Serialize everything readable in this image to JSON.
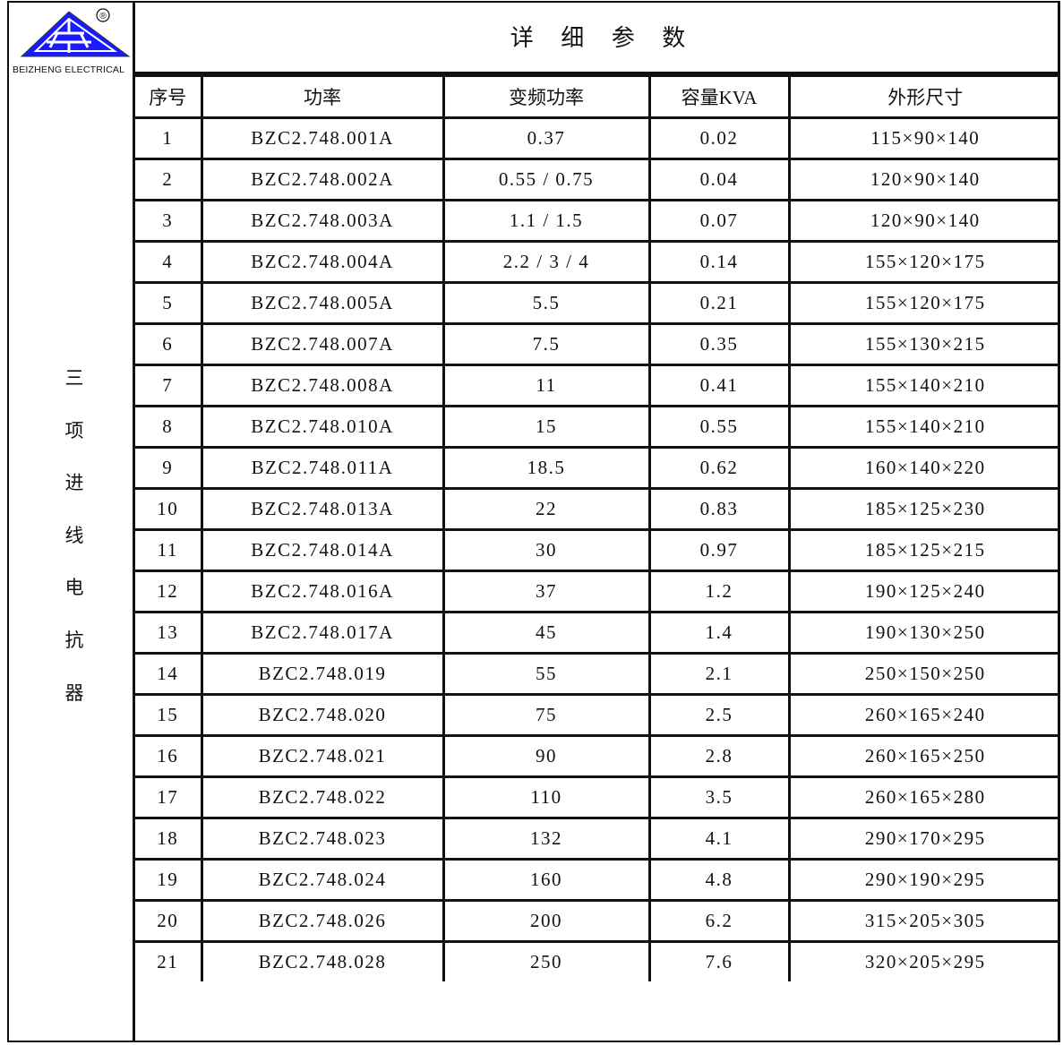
{
  "logo": {
    "brand": "BEIZHENG ELECTRICAL",
    "mark": "®",
    "color": "#1a1aff"
  },
  "side_title": [
    "三",
    "项",
    "进",
    "线",
    "电",
    "抗",
    "器"
  ],
  "title": "详 细 参 数",
  "headers": [
    "序号",
    "功率",
    "变频功率",
    "容量KVA",
    "外形尺寸"
  ],
  "rows": [
    [
      "1",
      "BZC2.748.001A",
      "0.37",
      "0.02",
      "115×90×140"
    ],
    [
      "2",
      "BZC2.748.002A",
      "0.55 / 0.75",
      "0.04",
      "120×90×140"
    ],
    [
      "3",
      "BZC2.748.003A",
      "1.1 / 1.5",
      "0.07",
      "120×90×140"
    ],
    [
      "4",
      "BZC2.748.004A",
      "2.2 / 3 / 4",
      "0.14",
      "155×120×175"
    ],
    [
      "5",
      "BZC2.748.005A",
      "5.5",
      "0.21",
      "155×120×175"
    ],
    [
      "6",
      "BZC2.748.007A",
      "7.5",
      "0.35",
      "155×130×215"
    ],
    [
      "7",
      "BZC2.748.008A",
      "11",
      "0.41",
      "155×140×210"
    ],
    [
      "8",
      "BZC2.748.010A",
      "15",
      "0.55",
      "155×140×210"
    ],
    [
      "9",
      "BZC2.748.011A",
      "18.5",
      "0.62",
      "160×140×220"
    ],
    [
      "10",
      "BZC2.748.013A",
      "22",
      "0.83",
      "185×125×230"
    ],
    [
      "11",
      "BZC2.748.014A",
      "30",
      "0.97",
      "185×125×215"
    ],
    [
      "12",
      "BZC2.748.016A",
      "37",
      "1.2",
      "190×125×240"
    ],
    [
      "13",
      "BZC2.748.017A",
      "45",
      "1.4",
      "190×130×250"
    ],
    [
      "14",
      "BZC2.748.019",
      "55",
      "2.1",
      "250×150×250"
    ],
    [
      "15",
      "BZC2.748.020",
      "75",
      "2.5",
      "260×165×240"
    ],
    [
      "16",
      "BZC2.748.021",
      "90",
      "2.8",
      "260×165×250"
    ],
    [
      "17",
      "BZC2.748.022",
      "110",
      "3.5",
      "260×165×280"
    ],
    [
      "18",
      "BZC2.748.023",
      "132",
      "4.1",
      "290×170×295"
    ],
    [
      "19",
      "BZC2.748.024",
      "160",
      "4.8",
      "290×190×295"
    ],
    [
      "20",
      "BZC2.748.026",
      "200",
      "6.2",
      "315×205×305"
    ],
    [
      "21",
      "BZC2.748.028",
      "250",
      "7.6",
      "320×205×295"
    ]
  ]
}
